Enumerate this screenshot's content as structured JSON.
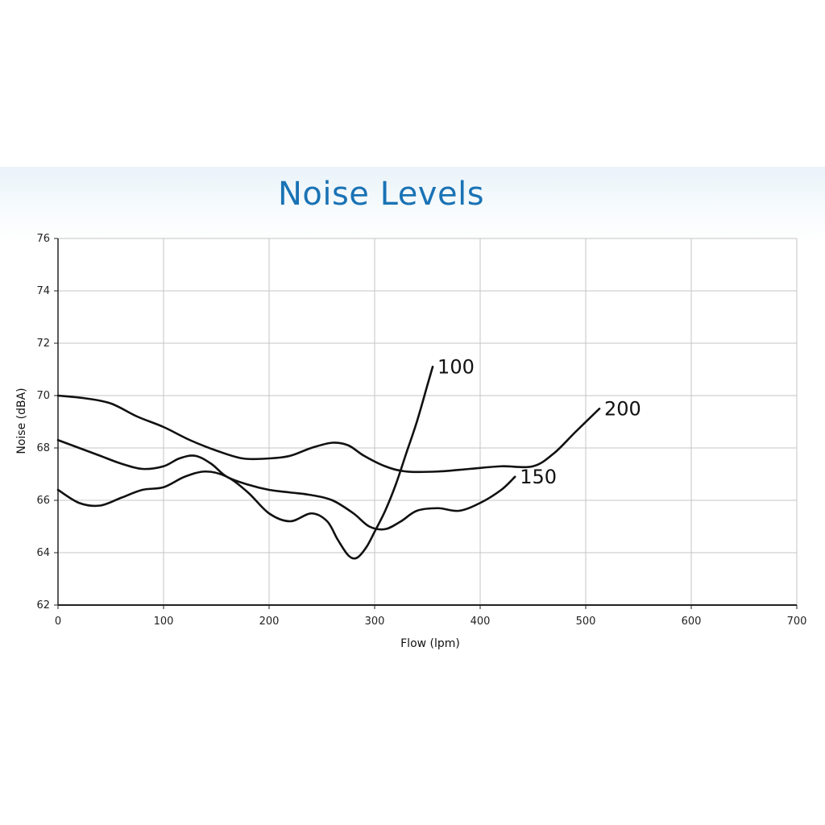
{
  "chart_data": {
    "type": "line",
    "title": "Noise Levels",
    "xlabel": "Flow (lpm)",
    "ylabel": "Noise (dBA)",
    "xlim": [
      0,
      700
    ],
    "ylim": [
      62,
      76
    ],
    "x_ticks": [
      0,
      100,
      200,
      300,
      400,
      500,
      600,
      700
    ],
    "y_ticks": [
      62,
      64,
      66,
      68,
      70,
      72,
      74,
      76
    ],
    "grid": true,
    "legend": "none",
    "colors": {
      "title": "#1a73b5",
      "line": "#111111",
      "grid": "#c4c4c4",
      "axis": "#222222"
    },
    "series": [
      {
        "name": "100",
        "x": [
          0,
          20,
          40,
          60,
          80,
          100,
          120,
          140,
          160,
          180,
          200,
          220,
          240,
          255,
          265,
          275,
          283,
          292,
          300,
          310,
          320,
          330,
          340,
          350,
          355
        ],
        "y": [
          66.4,
          65.9,
          65.8,
          66.1,
          66.4,
          66.5,
          66.9,
          67.1,
          66.9,
          66.3,
          65.5,
          65.2,
          65.5,
          65.2,
          64.5,
          63.9,
          63.8,
          64.2,
          64.8,
          65.6,
          66.6,
          67.8,
          69.0,
          70.4,
          71.1
        ]
      },
      {
        "name": "150",
        "x": [
          0,
          20,
          40,
          60,
          80,
          100,
          115,
          130,
          145,
          160,
          180,
          200,
          220,
          240,
          260,
          280,
          295,
          310,
          325,
          340,
          360,
          380,
          400,
          420,
          433
        ],
        "y": [
          68.3,
          68.0,
          67.7,
          67.4,
          67.2,
          67.3,
          67.6,
          67.7,
          67.4,
          66.9,
          66.6,
          66.4,
          66.3,
          66.2,
          66.0,
          65.5,
          65.0,
          64.9,
          65.2,
          65.6,
          65.7,
          65.6,
          65.9,
          66.4,
          66.9
        ]
      },
      {
        "name": "200",
        "x": [
          0,
          25,
          50,
          75,
          100,
          125,
          150,
          175,
          200,
          220,
          240,
          260,
          275,
          290,
          310,
          330,
          360,
          390,
          420,
          450,
          470,
          490,
          513
        ],
        "y": [
          70.0,
          69.9,
          69.7,
          69.2,
          68.8,
          68.3,
          67.9,
          67.6,
          67.6,
          67.7,
          68.0,
          68.2,
          68.1,
          67.7,
          67.3,
          67.1,
          67.1,
          67.2,
          67.3,
          67.3,
          67.8,
          68.6,
          69.5
        ]
      }
    ]
  }
}
